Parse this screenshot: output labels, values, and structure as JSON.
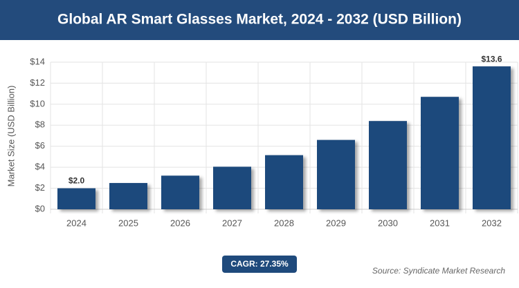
{
  "chart_data": {
    "type": "bar",
    "title": "Global AR Smart Glasses Market, 2024 - 2032 (USD Billion)",
    "y_label": "Market Size (USD Billion)",
    "categories": [
      "2024",
      "2025",
      "2026",
      "2027",
      "2028",
      "2029",
      "2030",
      "2031",
      "2032"
    ],
    "values": [
      2.0,
      2.5,
      3.2,
      4.05,
      5.15,
      6.6,
      8.4,
      10.7,
      13.6
    ],
    "value_labels": [
      "$2.0",
      null,
      null,
      null,
      null,
      null,
      null,
      null,
      "$13.6"
    ],
    "color": "#1f4a7c",
    "ylim": [
      0,
      14
    ],
    "yticks": [
      {
        "value": 0,
        "label": "$0"
      },
      {
        "value": 2,
        "label": "$2"
      },
      {
        "value": 4,
        "label": "$4"
      },
      {
        "value": 6,
        "label": "$6"
      },
      {
        "value": 8,
        "label": "$8"
      },
      {
        "value": 10,
        "label": "$10"
      },
      {
        "value": 12,
        "label": "$12"
      },
      {
        "value": 14,
        "label": "$14"
      }
    ],
    "grid": true
  },
  "badge": "CAGR: 27.35%",
  "source": "Source: Syndicate Market Research"
}
